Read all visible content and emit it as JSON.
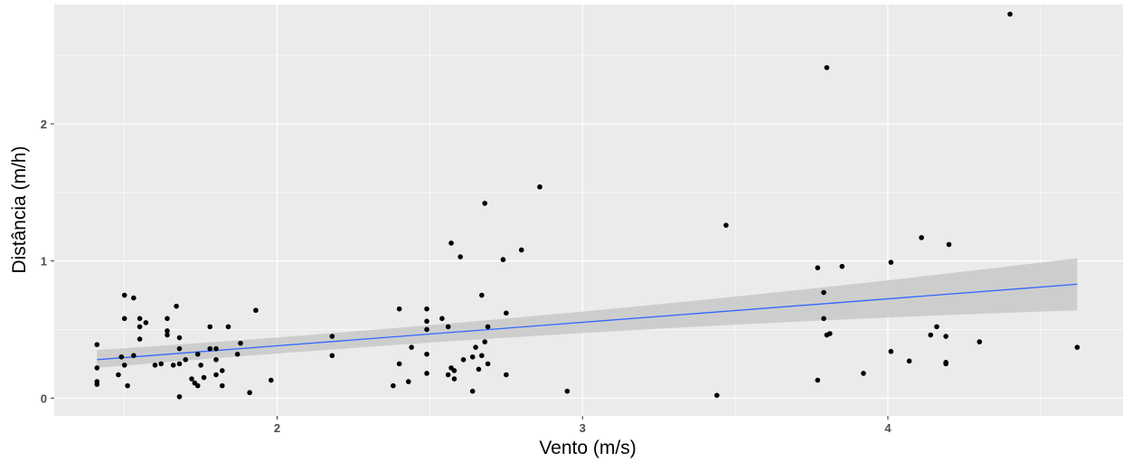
{
  "chart_data": {
    "type": "scatter",
    "title": "",
    "xlabel": "Vento (m/s)",
    "ylabel": "Distância (m/h)",
    "xlim": [
      1.27,
      4.77
    ],
    "ylim": [
      -0.13,
      2.87
    ],
    "xticks": [
      2,
      3,
      4
    ],
    "yticks": [
      0,
      1,
      2
    ],
    "xtick_labels": [
      "2",
      "3",
      "4"
    ],
    "ytick_labels": [
      "0",
      "1",
      "2"
    ],
    "grid": true,
    "legend": "none",
    "colors": {
      "panel": "#ebebeb",
      "grid": "#ffffff",
      "point": "#000000",
      "fit_line": "#3366ff",
      "ribbon": "#c8c8c8"
    },
    "points": [
      [
        1.41,
        0.39
      ],
      [
        1.41,
        0.22
      ],
      [
        1.41,
        0.12
      ],
      [
        1.41,
        0.1
      ],
      [
        1.48,
        0.17
      ],
      [
        1.49,
        0.3
      ],
      [
        1.5,
        0.75
      ],
      [
        1.5,
        0.58
      ],
      [
        1.5,
        0.24
      ],
      [
        1.51,
        0.09
      ],
      [
        1.53,
        0.73
      ],
      [
        1.53,
        0.31
      ],
      [
        1.55,
        0.58
      ],
      [
        1.55,
        0.52
      ],
      [
        1.55,
        0.43
      ],
      [
        1.57,
        0.55
      ],
      [
        1.6,
        0.24
      ],
      [
        1.62,
        0.25
      ],
      [
        1.64,
        0.58
      ],
      [
        1.64,
        0.49
      ],
      [
        1.64,
        0.46
      ],
      [
        1.66,
        0.24
      ],
      [
        1.67,
        0.67
      ],
      [
        1.68,
        0.36
      ],
      [
        1.68,
        0.44
      ],
      [
        1.68,
        0.25
      ],
      [
        1.68,
        0.01
      ],
      [
        1.7,
        0.28
      ],
      [
        1.72,
        0.14
      ],
      [
        1.73,
        0.11
      ],
      [
        1.74,
        0.32
      ],
      [
        1.74,
        0.09
      ],
      [
        1.75,
        0.24
      ],
      [
        1.76,
        0.15
      ],
      [
        1.78,
        0.52
      ],
      [
        1.78,
        0.36
      ],
      [
        1.8,
        0.36
      ],
      [
        1.8,
        0.28
      ],
      [
        1.8,
        0.17
      ],
      [
        1.82,
        0.2
      ],
      [
        1.82,
        0.09
      ],
      [
        1.84,
        0.52
      ],
      [
        1.87,
        0.32
      ],
      [
        1.88,
        0.4
      ],
      [
        1.91,
        0.04
      ],
      [
        1.93,
        0.64
      ],
      [
        1.98,
        0.13
      ],
      [
        2.18,
        0.45
      ],
      [
        2.18,
        0.31
      ],
      [
        2.38,
        0.09
      ],
      [
        2.4,
        0.25
      ],
      [
        2.4,
        0.65
      ],
      [
        2.43,
        0.12
      ],
      [
        2.44,
        0.37
      ],
      [
        2.49,
        0.65
      ],
      [
        2.49,
        0.56
      ],
      [
        2.49,
        0.5
      ],
      [
        2.49,
        0.32
      ],
      [
        2.49,
        0.18
      ],
      [
        2.54,
        0.58
      ],
      [
        2.56,
        0.52
      ],
      [
        2.56,
        0.17
      ],
      [
        2.57,
        0.22
      ],
      [
        2.58,
        0.14
      ],
      [
        2.58,
        0.2
      ],
      [
        2.57,
        1.13
      ],
      [
        2.6,
        1.03
      ],
      [
        2.61,
        0.28
      ],
      [
        2.64,
        0.3
      ],
      [
        2.64,
        0.05
      ],
      [
        2.65,
        0.37
      ],
      [
        2.66,
        0.21
      ],
      [
        2.67,
        0.75
      ],
      [
        2.67,
        0.31
      ],
      [
        2.68,
        0.41
      ],
      [
        2.68,
        1.42
      ],
      [
        2.69,
        0.25
      ],
      [
        2.69,
        0.52
      ],
      [
        2.74,
        1.01
      ],
      [
        2.75,
        0.62
      ],
      [
        2.75,
        0.17
      ],
      [
        2.8,
        1.08
      ],
      [
        2.86,
        1.54
      ],
      [
        2.95,
        0.05
      ],
      [
        3.44,
        0.02
      ],
      [
        3.47,
        1.26
      ],
      [
        3.77,
        0.95
      ],
      [
        3.77,
        0.13
      ],
      [
        3.79,
        0.77
      ],
      [
        3.79,
        0.58
      ],
      [
        3.8,
        0.46
      ],
      [
        3.81,
        0.47
      ],
      [
        3.8,
        2.41
      ],
      [
        3.85,
        0.96
      ],
      [
        3.92,
        0.18
      ],
      [
        4.01,
        0.99
      ],
      [
        4.01,
        0.34
      ],
      [
        4.07,
        0.27
      ],
      [
        4.11,
        1.17
      ],
      [
        4.14,
        0.46
      ],
      [
        4.16,
        0.52
      ],
      [
        4.19,
        0.45
      ],
      [
        4.19,
        0.25
      ],
      [
        4.19,
        0.26
      ],
      [
        4.2,
        1.12
      ],
      [
        4.3,
        0.41
      ],
      [
        4.4,
        2.8
      ],
      [
        4.62,
        0.37
      ]
    ],
    "fit_line": {
      "x": [
        1.41,
        4.62
      ],
      "y": [
        0.28,
        0.83
      ],
      "ci_lower": [
        0.22,
        0.64
      ],
      "ci_upper": [
        0.35,
        1.02
      ],
      "ci_mid": {
        "x": 3.0,
        "lower": 0.5,
        "upper": 0.6
      }
    }
  }
}
